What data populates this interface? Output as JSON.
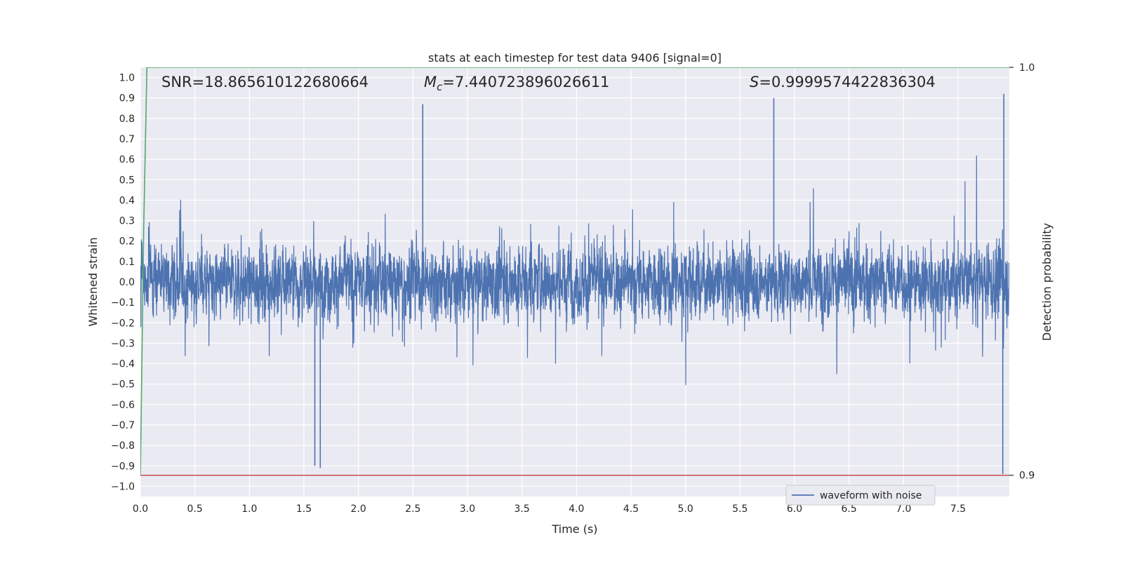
{
  "chart_data": {
    "type": "line",
    "title": "stats at each timestep for test data 9406 [signal=0]",
    "xlabel": "Time (s)",
    "ylabel": "Whitened strain",
    "ylabel_right": "Detection probability",
    "xlim": [
      0.0,
      7.97
    ],
    "ylim": [
      -1.05,
      1.05
    ],
    "ylim_right": [
      0.8948,
      1.0
    ],
    "x_ticks": [
      "0.0",
      "0.5",
      "1.0",
      "1.5",
      "2.0",
      "2.5",
      "3.0",
      "3.5",
      "4.0",
      "4.5",
      "5.0",
      "5.5",
      "6.0",
      "6.5",
      "7.0",
      "7.5"
    ],
    "y_ticks": [
      "1.0",
      "0.9",
      "0.8",
      "0.7",
      "0.6",
      "0.5",
      "0.4",
      "0.3",
      "0.2",
      "0.1",
      "0.0",
      "−0.1",
      "−0.2",
      "−0.3",
      "−0.4",
      "−0.5",
      "−0.6",
      "−0.7",
      "−0.8",
      "−0.9",
      "−1.0"
    ],
    "y_ticks_right": [
      "1.0",
      "0.9"
    ],
    "grid": true,
    "legend_placement": "lower-right",
    "annotations": {
      "snr": "SNR=18.865610122680664",
      "mc_symbol": "M",
      "mc_sub": "c",
      "mc_value": "=7.440723896026611",
      "s_symbol": "S",
      "s_value": "=0.9999574422836304"
    },
    "series": [
      {
        "name": "waveform with noise",
        "axis": "left",
        "color": "#4c72b0",
        "sampled": true,
        "envelope_max": 0.93,
        "envelope_min": -0.94,
        "notable_peaks": [
          {
            "x": 2.59,
            "y": 0.87
          },
          {
            "x": 5.81,
            "y": 0.9
          },
          {
            "x": 7.92,
            "y": 0.92
          },
          {
            "x": 1.6,
            "y": -0.9
          },
          {
            "x": 1.65,
            "y": -0.91
          },
          {
            "x": 7.91,
            "y": -0.94
          }
        ]
      },
      {
        "name": "",
        "axis": "right",
        "color": "#55a868",
        "x": [
          0.0,
          0.03,
          0.06,
          0.1,
          0.2,
          7.97
        ],
        "y": [
          0.9,
          0.96,
          0.99999,
          0.99999,
          1.0,
          1.0
        ]
      },
      {
        "name": "",
        "axis": "right",
        "color": "#c44e52",
        "x": [
          0.0,
          7.97
        ],
        "y": [
          0.9,
          0.9
        ]
      }
    ],
    "colors": {
      "plot_bg": "#eaeaf2",
      "grid": "#ffffff"
    }
  }
}
